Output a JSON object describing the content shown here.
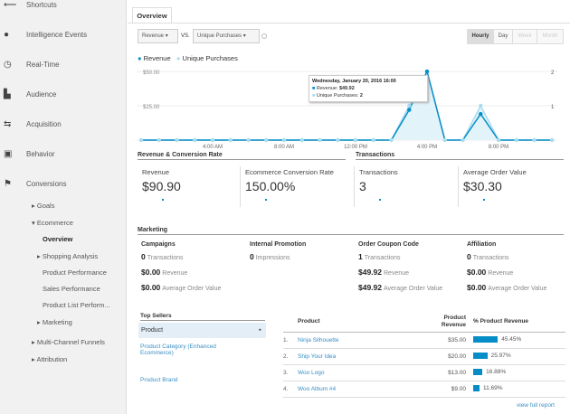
{
  "sidebar": {
    "items": [
      {
        "label": "Shortcuts",
        "icon": "shortcut-arrow-icon"
      },
      {
        "label": "Intelligence Events",
        "icon": "lightbulb-icon"
      },
      {
        "label": "Real-Time",
        "icon": "clock-icon"
      },
      {
        "label": "Audience",
        "icon": "people-icon"
      },
      {
        "label": "Acquisition",
        "icon": "arrows-icon"
      },
      {
        "label": "Behavior",
        "icon": "layout-icon"
      },
      {
        "label": "Conversions",
        "icon": "flag-icon"
      }
    ],
    "sub": {
      "goals": "Goals",
      "ecommerce": "Ecommerce",
      "overview": "Overview",
      "shopping": "Shopping Analysis",
      "product_perf": "Product Performance",
      "sales_perf": "Sales Performance",
      "product_list": "Product List Perform...",
      "marketing": "Marketing",
      "mcf": "Multi-Channel Funnels",
      "attribution": "Attribution"
    }
  },
  "tab": "Overview",
  "controls": {
    "metric1": "Revenue",
    "vs": "VS.",
    "metric2": "Unique Purchases",
    "hourly": "Hourly",
    "day": "Day",
    "week": "Week",
    "month": "Month",
    "active": "Hourly"
  },
  "chart_data": {
    "type": "line",
    "x": [
      "12:00 AM",
      "1:00 AM",
      "2:00 AM",
      "3:00 AM",
      "4:00 AM",
      "5:00 AM",
      "6:00 AM",
      "7:00 AM",
      "8:00 AM",
      "9:00 AM",
      "10:00 AM",
      "11:00 AM",
      "12:00 PM",
      "1:00 PM",
      "2:00 PM",
      "3:00 PM",
      "4:00 PM",
      "5:00 PM",
      "6:00 PM",
      "7:00 PM",
      "8:00 PM",
      "9:00 PM",
      "10:00 PM",
      "11:00 PM"
    ],
    "xticks": [
      "4:00 AM",
      "8:00 AM",
      "12:00 PM",
      "4:00 PM",
      "8:00 PM"
    ],
    "yticks_left": [
      "$25.00",
      "$50.00"
    ],
    "yticks_right": [
      "1",
      "2"
    ],
    "ylim_left": [
      0,
      50
    ],
    "ylim_right": [
      0,
      2
    ],
    "series": [
      {
        "name": "Revenue",
        "color": "#058dc7",
        "values": [
          0,
          0,
          0,
          0,
          0,
          0,
          0,
          0,
          0,
          0,
          0,
          0,
          0,
          0,
          0,
          22,
          49.92,
          0,
          0,
          19,
          0,
          0,
          0,
          0
        ]
      },
      {
        "name": "Unique Purchases",
        "color": "#a9dcf0",
        "values": [
          0,
          0,
          0,
          0,
          0,
          0,
          0,
          0,
          0,
          0,
          0,
          0,
          0,
          0,
          0,
          1,
          2,
          0,
          0,
          1,
          0,
          0,
          0,
          0
        ]
      }
    ],
    "tooltip": {
      "title": "Wednesday, January 20, 2016 16:00",
      "line1_label": "Revenue:",
      "line1_value": "$49.92",
      "line2_label": "Unique Purchases:",
      "line2_value": "2"
    }
  },
  "summary": {
    "sec1": "Revenue & Conversion Rate",
    "sec2": "Transactions",
    "metrics": [
      {
        "label": "Revenue",
        "value": "$90.90"
      },
      {
        "label": "Ecommerce Conversion Rate",
        "value": "150.00%"
      },
      {
        "label": "Transactions",
        "value": "3"
      },
      {
        "label": "Average Order Value",
        "value": "$30.30"
      }
    ]
  },
  "marketing": {
    "title": "Marketing",
    "cols": [
      {
        "head": "Campaigns",
        "rows": [
          {
            "v": "0",
            "l": "Transactions"
          },
          {
            "v": "$0.00",
            "l": "Revenue"
          },
          {
            "v": "$0.00",
            "l": "Average Order Value"
          }
        ]
      },
      {
        "head": "Internal Promotion",
        "rows": [
          {
            "v": "0",
            "l": "Impressions"
          }
        ]
      },
      {
        "head": "Order Coupon Code",
        "rows": [
          {
            "v": "1",
            "l": "Transactions"
          },
          {
            "v": "$49.92",
            "l": "Revenue"
          },
          {
            "v": "$49.92",
            "l": "Average Order Value"
          }
        ]
      },
      {
        "head": "Affiliation",
        "rows": [
          {
            "v": "0",
            "l": "Transactions"
          },
          {
            "v": "$0.00",
            "l": "Revenue"
          },
          {
            "v": "$0.00",
            "l": "Average Order Value"
          }
        ]
      }
    ]
  },
  "top_sellers": {
    "title": "Top Sellers",
    "items": [
      "Product",
      "Product Category (Enhanced Ecommerce)",
      "Product Brand"
    ],
    "headers": {
      "product": "Product",
      "revenue": "Product Revenue",
      "pct": "% Product Revenue"
    },
    "rows": [
      {
        "n": "1.",
        "name": "Ninja Silhouette",
        "rev": "$35.00",
        "pct": "45.45%",
        "f": 45.45
      },
      {
        "n": "2.",
        "name": "Ship Your Idea",
        "rev": "$20.00",
        "pct": "25.97%",
        "f": 25.97
      },
      {
        "n": "3.",
        "name": "Woo Logo",
        "rev": "$13.00",
        "pct": "16.88%",
        "f": 16.88
      },
      {
        "n": "4.",
        "name": "Woo Album #4",
        "rev": "$9.00",
        "pct": "11.69%",
        "f": 11.69
      }
    ],
    "view_full": "view full report"
  }
}
